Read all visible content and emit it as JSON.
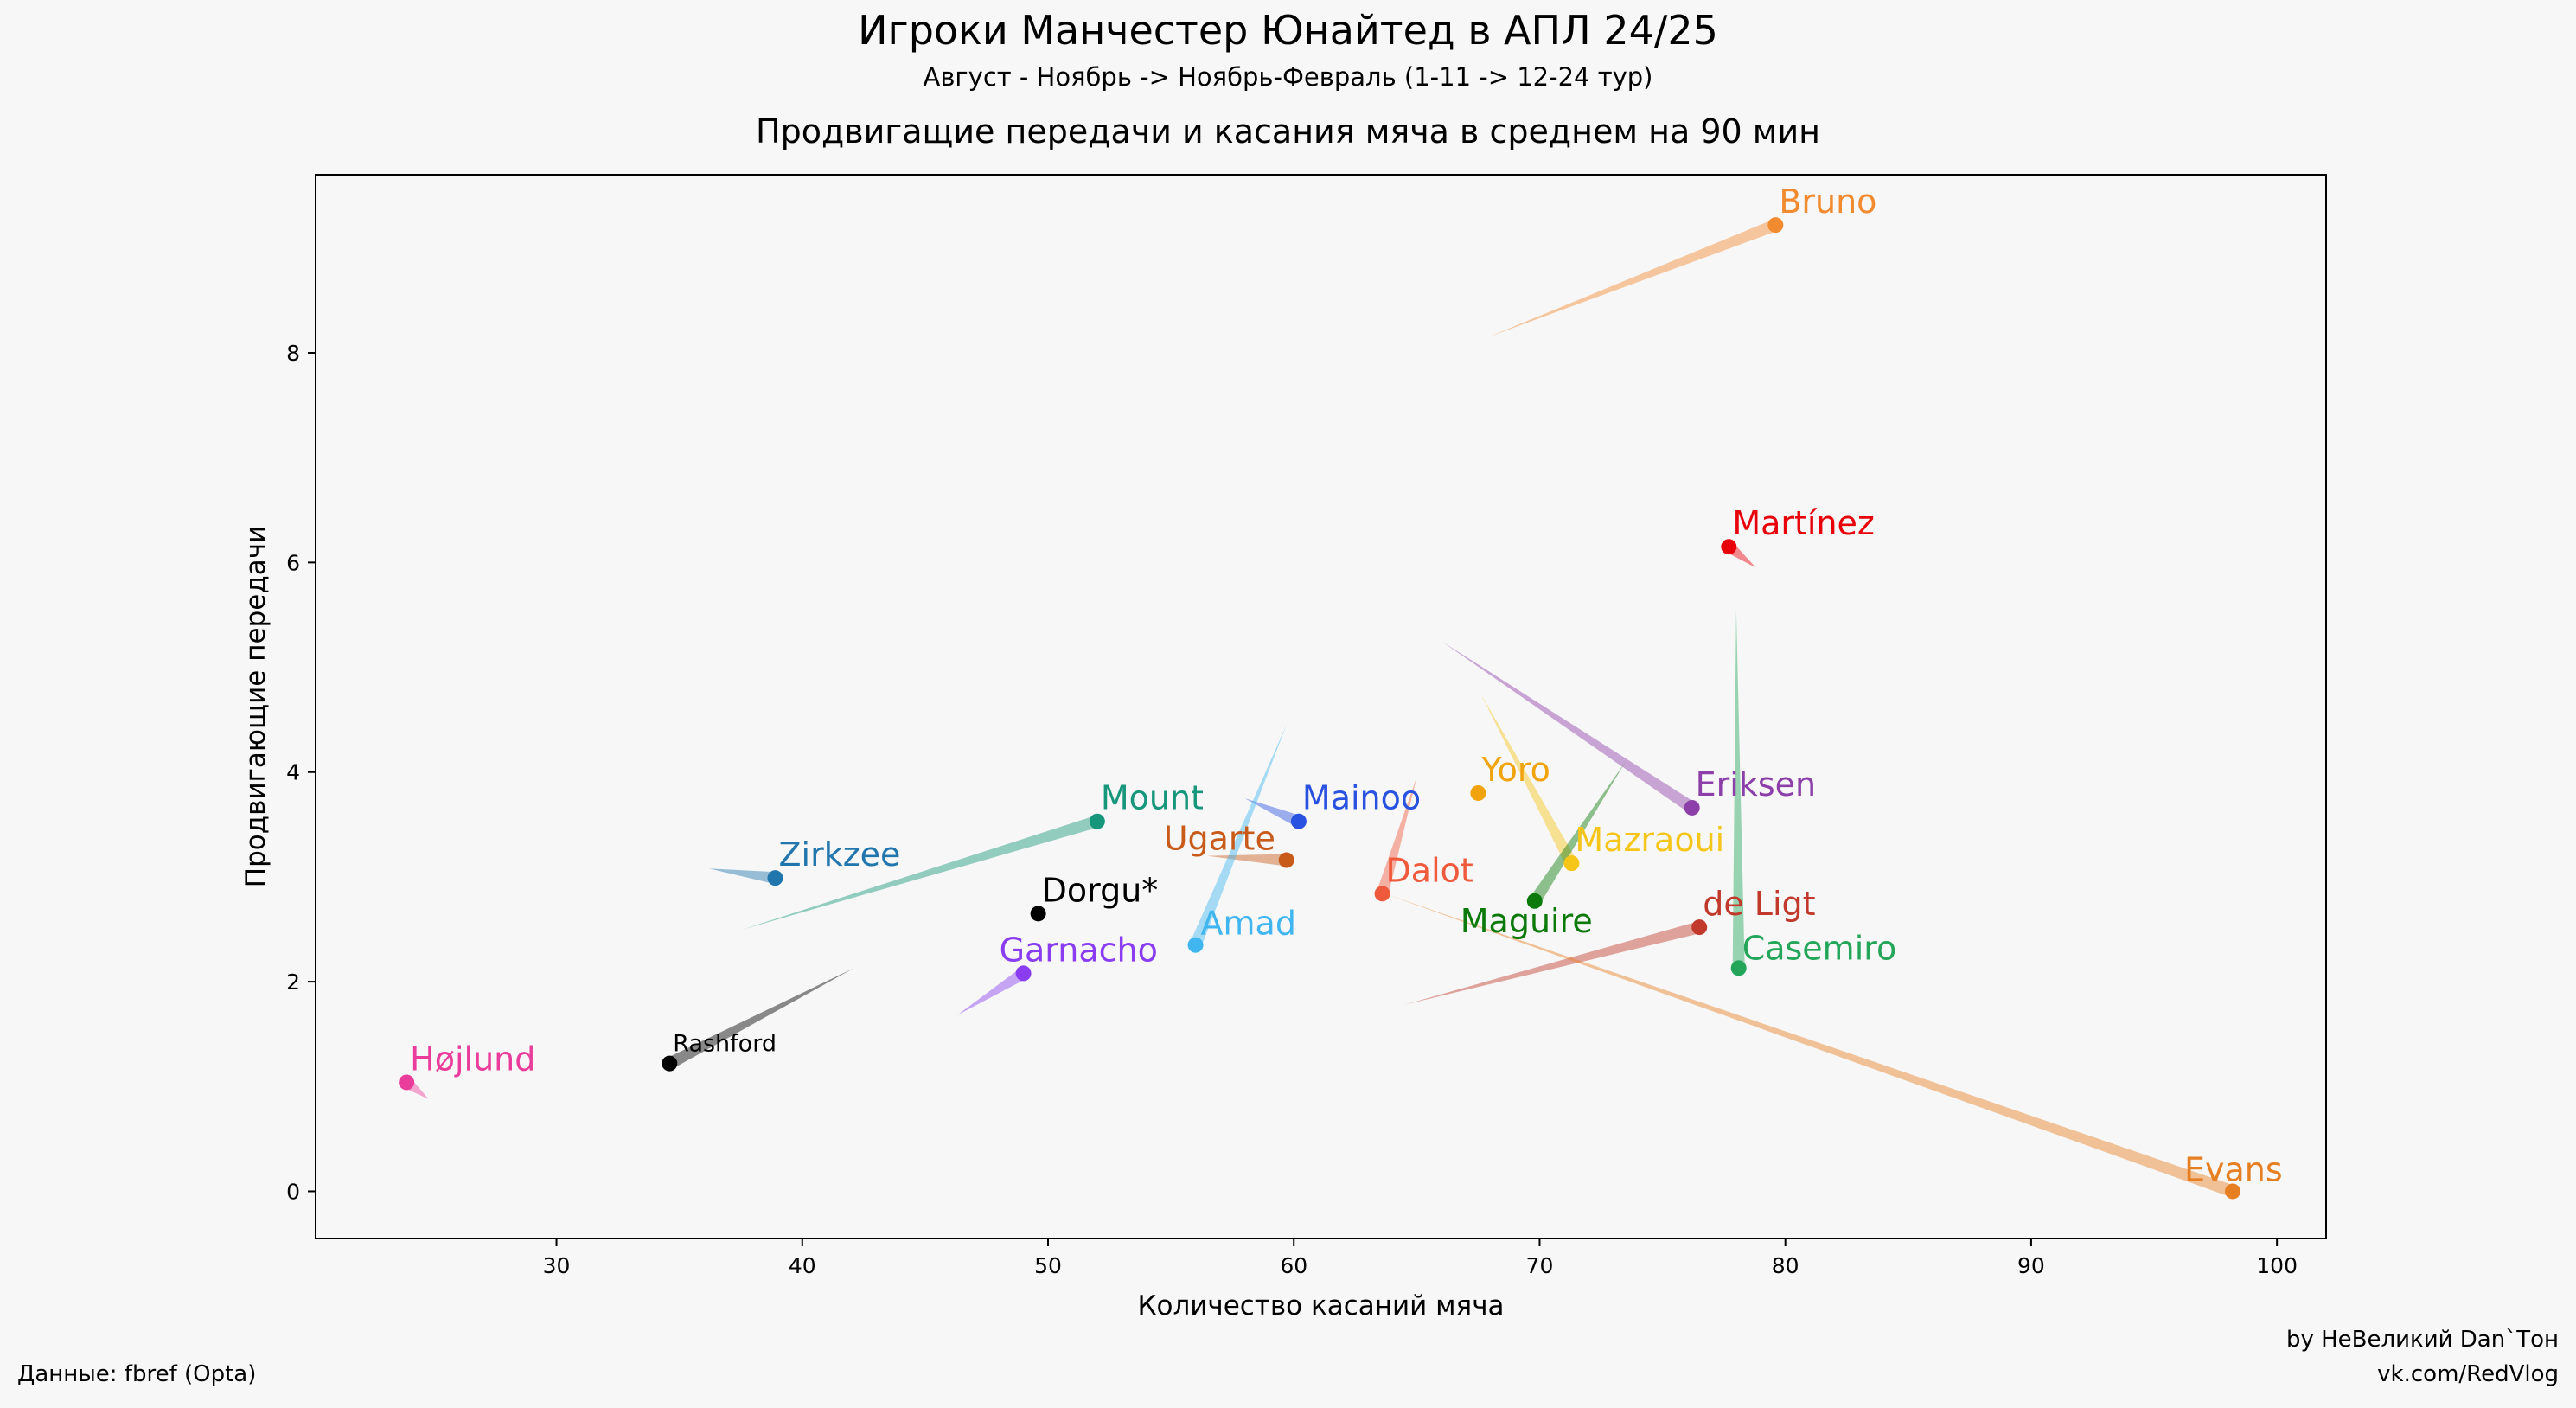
{
  "header": {
    "title": "Игроки Манчестер Юнайтед в АПЛ 24/25",
    "subtitle": "Август - Ноябрь -> Ноябрь-Февраль (1-11 -> 12-24 тур)"
  },
  "footer": {
    "source": "Данные: fbref (Opta)",
    "credit": "by НеВеликий Dan`Тон",
    "link": "vk.com/RedVlog"
  },
  "chart_data": {
    "type": "scatter",
    "title": "Продвигащие передачи и касания мяча в среднем на 90 мин",
    "xlabel": "Количество касаний мяча",
    "ylabel": "Продвигающие передачи",
    "xlim": [
      20.2,
      102
    ],
    "ylim": [
      -0.45,
      9.7
    ],
    "xticks": [
      30,
      40,
      50,
      60,
      70,
      80,
      90,
      100
    ],
    "yticks": [
      0,
      2,
      4,
      6,
      8
    ],
    "grid": false,
    "legend": "none",
    "points": [
      {
        "name": "Bruno",
        "x_start": 67.9,
        "y_start": 8.15,
        "x": 79.6,
        "y": 9.22,
        "color": "#f28a30"
      },
      {
        "name": "Martínez",
        "x_start": 78.8,
        "y_start": 5.95,
        "x": 77.7,
        "y": 6.15,
        "color": "#e8000b"
      },
      {
        "name": "Eriksen",
        "x_start": 66.0,
        "y_start": 5.25,
        "x": 76.2,
        "y": 3.66,
        "color": "#8c3fa8"
      },
      {
        "name": "Yoro",
        "x_start": 67.5,
        "y_start": 3.8,
        "x": 67.5,
        "y": 3.8,
        "color": "#f0a30a"
      },
      {
        "name": "Mazraoui",
        "x_start": 67.6,
        "y_start": 4.75,
        "x": 71.3,
        "y": 3.13,
        "color": "#f5c518"
      },
      {
        "name": "Maguire",
        "x_start": 73.5,
        "y_start": 4.1,
        "x": 69.8,
        "y": 2.77,
        "color": "#0b7a0b"
      },
      {
        "name": "Casemiro",
        "x_start": 78.0,
        "y_start": 5.55,
        "x": 78.1,
        "y": 2.13,
        "color": "#23a65a"
      },
      {
        "name": "de Ligt",
        "x_start": 64.5,
        "y_start": 1.78,
        "x": 76.5,
        "y": 2.52,
        "color": "#c0392b"
      },
      {
        "name": "Evans",
        "x_start": 63.7,
        "y_start": 2.84,
        "x": 98.2,
        "y": 0.0,
        "color": "#e67e22"
      },
      {
        "name": "Dalot",
        "x_start": 65.0,
        "y_start": 3.95,
        "x": 63.6,
        "y": 2.84,
        "color": "#f05a3c"
      },
      {
        "name": "Mainoo",
        "x_start": 58.0,
        "y_start": 3.75,
        "x": 60.2,
        "y": 3.53,
        "color": "#2a52e0"
      },
      {
        "name": "Ugarte",
        "x_start": 56.5,
        "y_start": 3.2,
        "x": 59.7,
        "y": 3.16,
        "color": "#c85a1a"
      },
      {
        "name": "Amad",
        "x_start": 59.7,
        "y_start": 4.45,
        "x": 56.0,
        "y": 2.35,
        "color": "#3fb6f0"
      },
      {
        "name": "Mount",
        "x_start": 37.6,
        "y_start": 2.5,
        "x": 52.0,
        "y": 3.53,
        "color": "#16967a"
      },
      {
        "name": "Dorgu*",
        "x_start": 49.6,
        "y_start": 2.65,
        "x": 49.6,
        "y": 2.65,
        "color": "#000000"
      },
      {
        "name": "Garnacho",
        "x_start": 46.3,
        "y_start": 1.68,
        "x": 49.0,
        "y": 2.08,
        "color": "#8a3df0"
      },
      {
        "name": "Zirkzee",
        "x_start": 36.2,
        "y_start": 3.08,
        "x": 38.9,
        "y": 2.99,
        "color": "#2176ae"
      },
      {
        "name": "Rashford",
        "x_start": 42.1,
        "y_start": 2.13,
        "x": 34.6,
        "y": 1.22,
        "color": "#000000"
      },
      {
        "name": "Højlund",
        "x_start": 24.8,
        "y_start": 0.88,
        "x": 23.9,
        "y": 1.04,
        "color": "#ea3d9b"
      }
    ]
  }
}
